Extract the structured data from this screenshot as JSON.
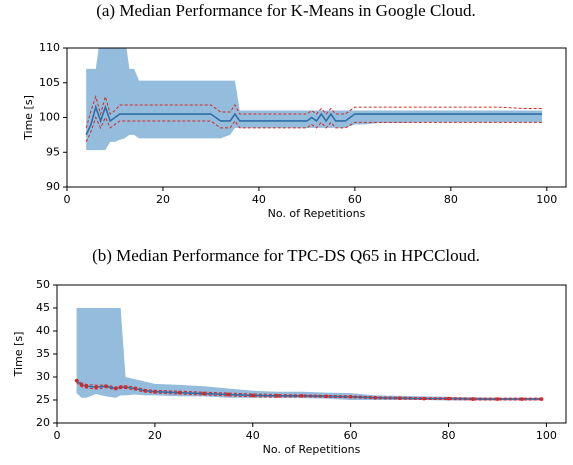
{
  "chart_data": [
    {
      "type": "line",
      "title": "(a) Median Performance for K-Means in Google Cloud.",
      "xlabel": "No. of Repetitions",
      "ylabel": "Time [s]",
      "xlim": [
        0,
        104
      ],
      "ylim": [
        90,
        110
      ],
      "xticks": [
        0,
        20,
        40,
        60,
        80,
        100
      ],
      "yticks": [
        90,
        95,
        100,
        105,
        110
      ],
      "markers": false,
      "x": [
        4,
        5,
        6,
        7,
        8,
        9,
        10,
        11,
        12,
        13,
        14,
        15,
        16,
        18,
        20,
        25,
        30,
        32,
        34,
        35,
        36,
        38,
        40,
        45,
        50,
        51,
        52,
        53,
        54,
        55,
        56,
        58,
        60,
        61,
        62,
        65,
        70,
        75,
        80,
        85,
        90,
        95,
        99
      ],
      "band": {
        "color": "#94bcdc",
        "upper": [
          107,
          107,
          107,
          112,
          112,
          112,
          112,
          112,
          112,
          107,
          107,
          105.3,
          105.3,
          105.3,
          105.3,
          105.3,
          105.3,
          105.3,
          105.3,
          105.3,
          101,
          101,
          101,
          101,
          101,
          101,
          101,
          101,
          101,
          101,
          101,
          101,
          101,
          101,
          101,
          101,
          101,
          101,
          101,
          101,
          101,
          101,
          101
        ],
        "lower": [
          95.3,
          95.3,
          95.3,
          95.3,
          95.3,
          96.5,
          96.5,
          96.8,
          97,
          97.5,
          97.5,
          97,
          97,
          97,
          97,
          97,
          97,
          97,
          97.5,
          98.5,
          98.5,
          98.5,
          98.5,
          98.5,
          98.5,
          98.5,
          98.5,
          98.5,
          98.5,
          98.5,
          98.5,
          98.5,
          99,
          99,
          99,
          99.2,
          99.2,
          99.3,
          99.3,
          99.3,
          99.3,
          99.3,
          99.3
        ]
      },
      "series": [
        {
          "color": "#2f6fa8",
          "dash": false,
          "values": [
            97.5,
            99,
            101.5,
            99.5,
            101.5,
            99.5,
            100,
            100.5,
            100.5,
            100.5,
            100.5,
            100.5,
            100.5,
            100.5,
            100.5,
            100.5,
            100.5,
            99.5,
            99.5,
            100.5,
            99.5,
            99.5,
            99.5,
            99.5,
            99.5,
            100,
            99.5,
            100.5,
            99.5,
            100.5,
            99.5,
            99.5,
            100.5,
            100.5,
            100.5,
            100.5,
            100.5,
            100.5,
            100.5,
            100.5,
            100.5,
            100.5,
            100.5
          ]
        },
        {
          "color": "#d62728",
          "dash": true,
          "values": [
            98.5,
            101,
            103,
            100.5,
            103,
            100.5,
            101,
            101.8,
            101.8,
            101.8,
            101.8,
            101.8,
            101.8,
            101.8,
            101.8,
            101.8,
            101.8,
            100.8,
            100.8,
            101.8,
            100.5,
            100.5,
            100.5,
            100.5,
            100.5,
            101,
            100.5,
            101.3,
            100.5,
            101.3,
            100.5,
            100.5,
            101.5,
            101.5,
            101.5,
            101.5,
            101.5,
            101.5,
            101.5,
            101.5,
            101.5,
            101.3,
            101.3
          ]
        },
        {
          "color": "#d62728",
          "dash": true,
          "values": [
            96.5,
            98,
            100,
            98.5,
            100,
            98.5,
            99,
            99.5,
            99.5,
            99.5,
            99.5,
            99.5,
            99.5,
            99.5,
            99.5,
            99.5,
            99.5,
            98.5,
            98.5,
            99.5,
            98.5,
            98.5,
            98.5,
            98.5,
            98.5,
            99,
            98.5,
            99.3,
            98.5,
            99.3,
            98.5,
            98.5,
            99.3,
            99.3,
            99.3,
            99.3,
            99.3,
            99.3,
            99.3,
            99.3,
            99.3,
            99.3,
            99.3
          ]
        }
      ]
    },
    {
      "type": "line",
      "title": "(b) Median Performance for TPC-DS Q65 in HPCCloud.",
      "xlabel": "No. of Repetitions",
      "ylabel": "Time [s]",
      "xlim": [
        0,
        104
      ],
      "ylim": [
        20,
        50
      ],
      "xticks": [
        0,
        20,
        40,
        60,
        80,
        100
      ],
      "yticks": [
        20,
        25,
        30,
        35,
        40,
        45,
        50
      ],
      "markers": true,
      "x": [
        4,
        5,
        6,
        8,
        10,
        12,
        13,
        14,
        16,
        18,
        20,
        25,
        30,
        35,
        40,
        45,
        50,
        55,
        60,
        65,
        70,
        75,
        80,
        85,
        90,
        95,
        99
      ],
      "band": {
        "color": "#94bcdc",
        "upper": [
          45,
          45,
          45,
          45,
          45,
          45,
          45,
          30,
          29.5,
          29,
          28.5,
          28.3,
          28,
          27.5,
          27,
          26.8,
          26.8,
          26.6,
          26.5,
          26,
          25.9,
          25.8,
          25.7,
          25.6,
          25.5,
          25.5,
          25.5
        ],
        "lower": [
          26.5,
          25.5,
          25.5,
          26.3,
          25.8,
          25.5,
          26,
          26,
          26.2,
          26,
          26,
          25.8,
          25.8,
          25.5,
          25.5,
          25.5,
          25.4,
          25.3,
          25,
          25,
          25,
          25,
          24.9,
          24.9,
          24.9,
          24.9,
          24.9
        ]
      },
      "series": [
        {
          "color": "#2f6fa8",
          "dash": false,
          "values": [
            29.2,
            28.3,
            28,
            27.8,
            28,
            27.5,
            27.8,
            27.8,
            27.5,
            27,
            26.8,
            26.6,
            26.4,
            26.2,
            26,
            25.9,
            25.9,
            25.8,
            25.7,
            25.5,
            25.4,
            25.3,
            25.3,
            25.2,
            25.2,
            25.2,
            25.2
          ]
        },
        {
          "color": "#d62728",
          "dash": true,
          "values": [
            29.6,
            28.7,
            28.4,
            28.2,
            28.3,
            27.8,
            28.1,
            28.1,
            27.8,
            27.3,
            27.1,
            26.9,
            26.7,
            26.5,
            26.3,
            26.2,
            26.1,
            26,
            25.9,
            25.7,
            25.6,
            25.5,
            25.5,
            25.4,
            25.4,
            25.4,
            25.4
          ]
        },
        {
          "color": "#d62728",
          "dash": true,
          "values": [
            28.8,
            27.9,
            27.6,
            27.4,
            27.7,
            27.2,
            27.5,
            27.5,
            27.2,
            26.7,
            26.5,
            26.3,
            26.1,
            25.9,
            25.7,
            25.6,
            25.7,
            25.6,
            25.5,
            25.3,
            25.2,
            25.1,
            25.1,
            25,
            25,
            25,
            25
          ]
        }
      ]
    }
  ]
}
